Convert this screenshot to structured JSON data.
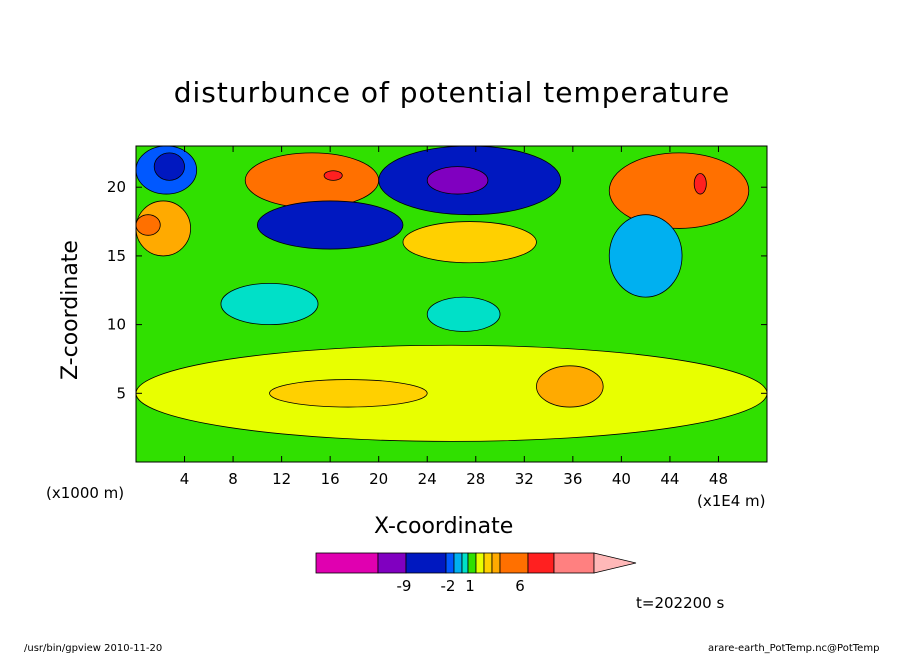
{
  "chart_data": {
    "type": "heatmap",
    "title": "disturbunce of potential temperature",
    "xlabel": "X-coordinate",
    "ylabel": "Z-coordinate",
    "x_unit_label": "(x1000 m)",
    "x_scale_label": "(x1E4 m)",
    "xlim": [
      0,
      52
    ],
    "ylim": [
      0,
      23
    ],
    "xticks": [
      4,
      8,
      12,
      16,
      20,
      24,
      28,
      32,
      36,
      40,
      44,
      48
    ],
    "yticks": [
      5,
      10,
      15,
      20
    ],
    "colorbar": {
      "colors": [
        "#e000b0",
        "#8000c0",
        "#0018c0",
        "#0058ff",
        "#00b0f0",
        "#00e0c8",
        "#30e000",
        "#e8ff00",
        "#ffd000",
        "#ffaa00",
        "#ff7000",
        "#ff2020",
        "#ff8080",
        "#ffb8b8"
      ],
      "tick_labels": [
        "-9",
        "-2",
        "1",
        "6"
      ]
    },
    "contour_field": {
      "background_value": 0,
      "regions": [
        {
          "name": "upper-left negative",
          "x": [
            0,
            5
          ],
          "z": [
            19.5,
            23
          ],
          "value": -3
        },
        {
          "name": "upper-left negative core",
          "x": [
            1.5,
            4
          ],
          "z": [
            20.5,
            22.5
          ],
          "value": -5
        },
        {
          "name": "left positive",
          "x": [
            0,
            4.5
          ],
          "z": [
            15,
            19
          ],
          "value": 3
        },
        {
          "name": "left positive core",
          "x": [
            0,
            2
          ],
          "z": [
            16.5,
            18
          ],
          "value": 5
        },
        {
          "name": "upper positive",
          "x": [
            9,
            20
          ],
          "z": [
            18.5,
            22.5
          ],
          "value": 4
        },
        {
          "name": "upper positive core",
          "x": [
            15.5,
            17
          ],
          "z": [
            20.5,
            21.2
          ],
          "value": 8
        },
        {
          "name": "middle negative",
          "x": [
            10,
            22
          ],
          "z": [
            15.5,
            19
          ],
          "value": -4
        },
        {
          "name": "upper negative",
          "x": [
            20,
            35
          ],
          "z": [
            18,
            23
          ],
          "value": -5
        },
        {
          "name": "upper negative core",
          "x": [
            24,
            29
          ],
          "z": [
            19.5,
            21.5
          ],
          "value": -9
        },
        {
          "name": "middle positive",
          "x": [
            22,
            33
          ],
          "z": [
            14.5,
            17.5
          ],
          "value": 2
        },
        {
          "name": "upper right positive",
          "x": [
            39,
            50.5
          ],
          "z": [
            17,
            22.5
          ],
          "value": 6
        },
        {
          "name": "upper right positive core",
          "x": [
            46,
            47
          ],
          "z": [
            19.5,
            21
          ],
          "value": 8
        },
        {
          "name": "right negative",
          "x": [
            39,
            45
          ],
          "z": [
            12,
            18
          ],
          "value": -2
        },
        {
          "name": "left-middle negative",
          "x": [
            7,
            15
          ],
          "z": [
            10,
            13
          ],
          "value": -1
        },
        {
          "name": "center-middle negative",
          "x": [
            24,
            30
          ],
          "z": [
            9.5,
            12
          ],
          "value": -1
        },
        {
          "name": "lower positive band",
          "x": [
            0,
            52
          ],
          "z": [
            1.5,
            8.5
          ],
          "value": 1
        },
        {
          "name": "lower positive cores",
          "x": [
            11,
            24
          ],
          "z": [
            4,
            6
          ],
          "value": 2
        },
        {
          "name": "lower right positive",
          "x": [
            33,
            38.5
          ],
          "z": [
            4,
            7
          ],
          "value": 3
        }
      ]
    }
  },
  "labels": {
    "title": "disturbunce of potential temperature",
    "xlabel": "X-coordinate",
    "ylabel": "Z-coordinate",
    "x_unit": "(x1000 m)",
    "x_scale": "(x1E4 m)",
    "timestamp": "t=202200 s",
    "footer_left": "/usr/bin/gpview  2010-11-20",
    "footer_right": "arare-earth_PotTemp.nc@PotTemp"
  }
}
